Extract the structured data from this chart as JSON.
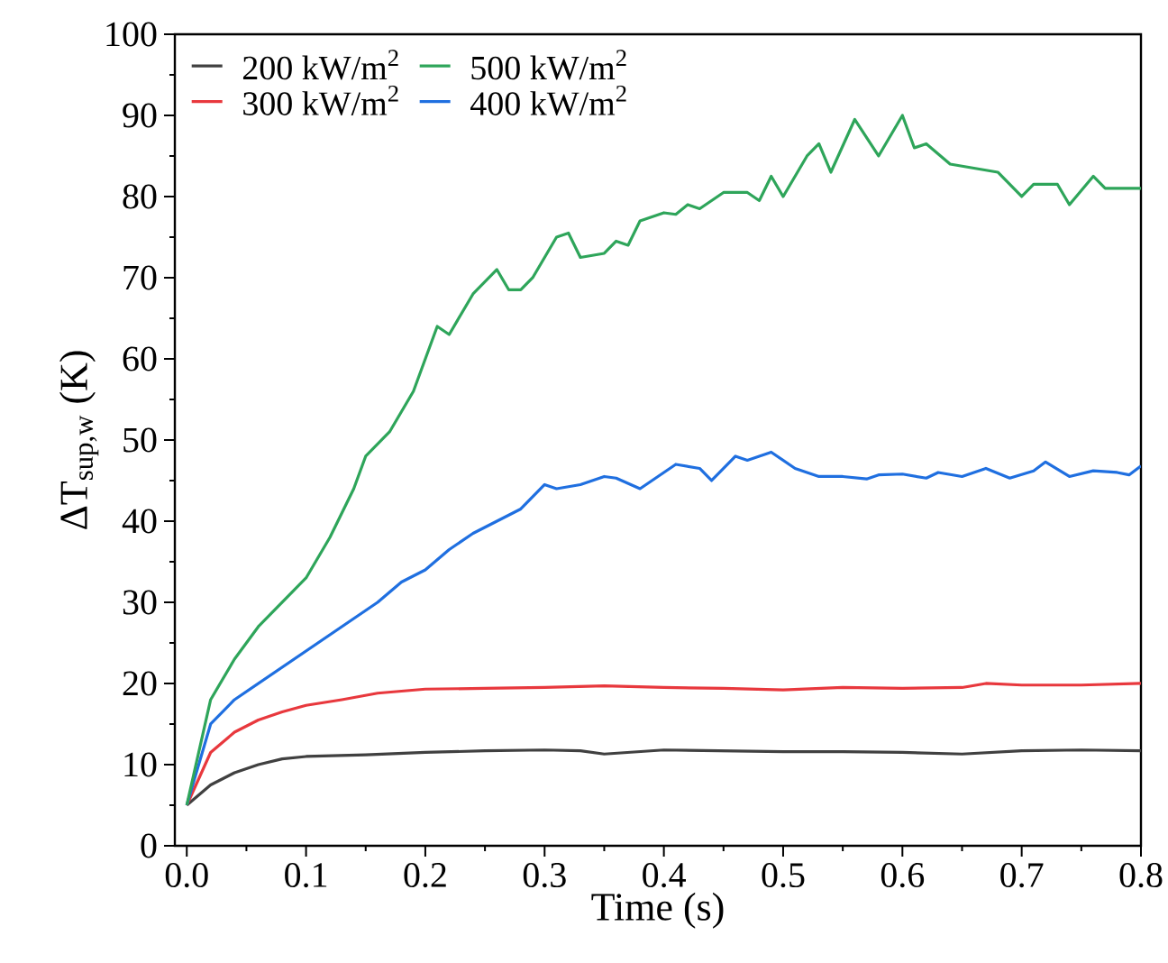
{
  "chart_data": {
    "type": "line",
    "xlabel": "Time (s)",
    "ylabel": "ΔT$_{sup,w}$ (K)",
    "xlim": [
      -0.01,
      0.8
    ],
    "ylim": [
      0,
      100
    ],
    "xticks": [
      {
        "value": 0,
        "label": "0.0"
      },
      {
        "value": 0.1,
        "label": "0.1"
      },
      {
        "value": 0.2,
        "label": "0.2"
      },
      {
        "value": 0.3,
        "label": "0.3"
      },
      {
        "value": 0.4,
        "label": "0.4"
      },
      {
        "value": 0.5,
        "label": "0.5"
      },
      {
        "value": 0.6,
        "label": "0.6"
      },
      {
        "value": 0.7,
        "label": "0.7"
      },
      {
        "value": 0.8,
        "label": "0.8"
      }
    ],
    "yticks": [
      0,
      10,
      20,
      30,
      40,
      50,
      60,
      70,
      80,
      90,
      100
    ],
    "grid": false,
    "legend": "top left",
    "marker": "none",
    "line_style": "solid",
    "series": [
      {
        "name": "200 kW/m$^{2}$",
        "color": "#404040",
        "x": [
          0,
          0.02,
          0.04,
          0.06,
          0.08,
          0.1,
          0.15,
          0.2,
          0.25,
          0.3,
          0.33,
          0.35,
          0.4,
          0.45,
          0.5,
          0.55,
          0.6,
          0.65,
          0.7,
          0.75,
          0.8
        ],
        "values": [
          5,
          7.5,
          9,
          10,
          10.7,
          11,
          11.2,
          11.5,
          11.7,
          11.8,
          11.7,
          11.3,
          11.8,
          11.7,
          11.6,
          11.6,
          11.5,
          11.3,
          11.7,
          11.8,
          11.7
        ]
      },
      {
        "name": "300 kW/m$^{2}$",
        "color": "#e8383d",
        "x": [
          0,
          0.02,
          0.04,
          0.06,
          0.08,
          0.1,
          0.13,
          0.16,
          0.2,
          0.25,
          0.3,
          0.35,
          0.4,
          0.45,
          0.5,
          0.55,
          0.6,
          0.65,
          0.67,
          0.7,
          0.75,
          0.8
        ],
        "values": [
          5,
          11.5,
          14,
          15.5,
          16.5,
          17.3,
          18,
          18.8,
          19.3,
          19.4,
          19.5,
          19.7,
          19.5,
          19.4,
          19.2,
          19.5,
          19.4,
          19.5,
          20,
          19.8,
          19.8,
          20
        ]
      },
      {
        "name": "400 kW/m$^{2}$",
        "color": "#1f6fe0",
        "x": [
          0,
          0.02,
          0.04,
          0.06,
          0.08,
          0.1,
          0.12,
          0.14,
          0.16,
          0.18,
          0.2,
          0.22,
          0.24,
          0.26,
          0.28,
          0.3,
          0.31,
          0.33,
          0.35,
          0.36,
          0.38,
          0.4,
          0.41,
          0.43,
          0.44,
          0.46,
          0.47,
          0.49,
          0.51,
          0.53,
          0.55,
          0.57,
          0.58,
          0.6,
          0.62,
          0.63,
          0.65,
          0.67,
          0.69,
          0.71,
          0.72,
          0.74,
          0.76,
          0.78,
          0.79,
          0.8
        ],
        "values": [
          5,
          15,
          18,
          20,
          22,
          24,
          26,
          28,
          30,
          32.5,
          34,
          36.5,
          38.5,
          40,
          41.5,
          44.5,
          44,
          44.5,
          45.5,
          45.3,
          44,
          46,
          47,
          46.5,
          45,
          48,
          47.5,
          48.5,
          46.5,
          45.5,
          45.5,
          45.2,
          45.7,
          45.8,
          45.3,
          46,
          45.5,
          46.5,
          45.3,
          46.2,
          47.3,
          45.5,
          46.2,
          46,
          45.7,
          46.8
        ]
      },
      {
        "name": "500 kW/m$^{2}$",
        "color": "#2ea55a",
        "x": [
          0,
          0.02,
          0.04,
          0.06,
          0.08,
          0.1,
          0.12,
          0.14,
          0.15,
          0.17,
          0.19,
          0.2,
          0.21,
          0.22,
          0.24,
          0.26,
          0.27,
          0.28,
          0.29,
          0.31,
          0.32,
          0.33,
          0.35,
          0.36,
          0.37,
          0.38,
          0.4,
          0.41,
          0.42,
          0.43,
          0.45,
          0.47,
          0.48,
          0.49,
          0.5,
          0.52,
          0.53,
          0.54,
          0.56,
          0.58,
          0.6,
          0.61,
          0.62,
          0.64,
          0.66,
          0.68,
          0.7,
          0.71,
          0.73,
          0.74,
          0.76,
          0.77,
          0.8
        ],
        "values": [
          5,
          18,
          23,
          27,
          30,
          33,
          38,
          44,
          48,
          51,
          56,
          60,
          64,
          63,
          68,
          71,
          68.5,
          68.5,
          70,
          75,
          75.5,
          72.5,
          73,
          74.5,
          74,
          77,
          78,
          77.8,
          79,
          78.5,
          80.5,
          80.5,
          79.5,
          82.5,
          80,
          85,
          86.5,
          83,
          89.5,
          85,
          90,
          86,
          86.5,
          84,
          83.5,
          83,
          80,
          81.5,
          81.5,
          79,
          82.5,
          81,
          81
        ]
      }
    ]
  }
}
